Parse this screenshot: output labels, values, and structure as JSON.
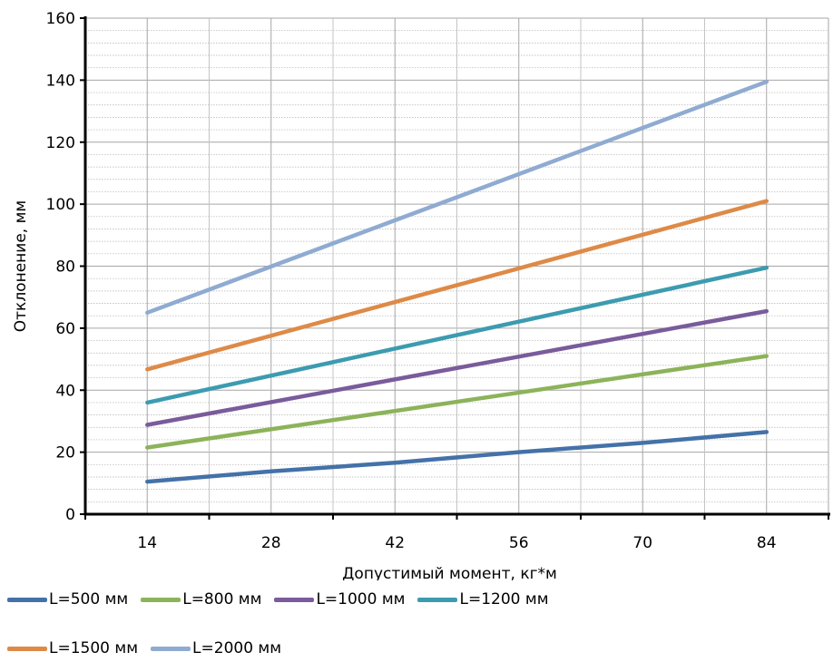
{
  "chart_data": {
    "type": "line",
    "xlabel": "Допустимый момент, кг*м",
    "ylabel": "Отклонение, мм",
    "x": [
      14,
      84
    ],
    "xticks": [
      "14",
      "28",
      "42",
      "56",
      "70",
      "84"
    ],
    "xlim": [
      7,
      91
    ],
    "ylim": [
      0,
      160
    ],
    "yticks": [
      "0",
      "20",
      "40",
      "60",
      "80",
      "100",
      "120",
      "140",
      "160"
    ],
    "grid": true,
    "legend_position": "bottom",
    "series": [
      {
        "name": "L=500 мм",
        "color": "#4472a8",
        "x": [
          14,
          28,
          42,
          56,
          70,
          84
        ],
        "values": [
          10.5,
          13.8,
          16.6,
          20.0,
          23.0,
          26.5
        ]
      },
      {
        "name": "L=800 мм",
        "color": "#8db35a",
        "x": [
          14,
          84
        ],
        "values": [
          21.5,
          51.0
        ]
      },
      {
        "name": "L=1000 мм",
        "color": "#7a5b9b",
        "x": [
          14,
          84
        ],
        "values": [
          28.8,
          65.5
        ]
      },
      {
        "name": "L=1200 мм",
        "color": "#3d9bb0",
        "x": [
          14,
          84
        ],
        "values": [
          36.0,
          79.5
        ]
      },
      {
        "name": "L=1500 мм",
        "color": "#de8a47",
        "x": [
          14,
          84
        ],
        "values": [
          46.7,
          101.0
        ]
      },
      {
        "name": "L=2000 мм",
        "color": "#8fabd1",
        "x": [
          14,
          84
        ],
        "values": [
          65.0,
          139.5
        ]
      }
    ]
  }
}
